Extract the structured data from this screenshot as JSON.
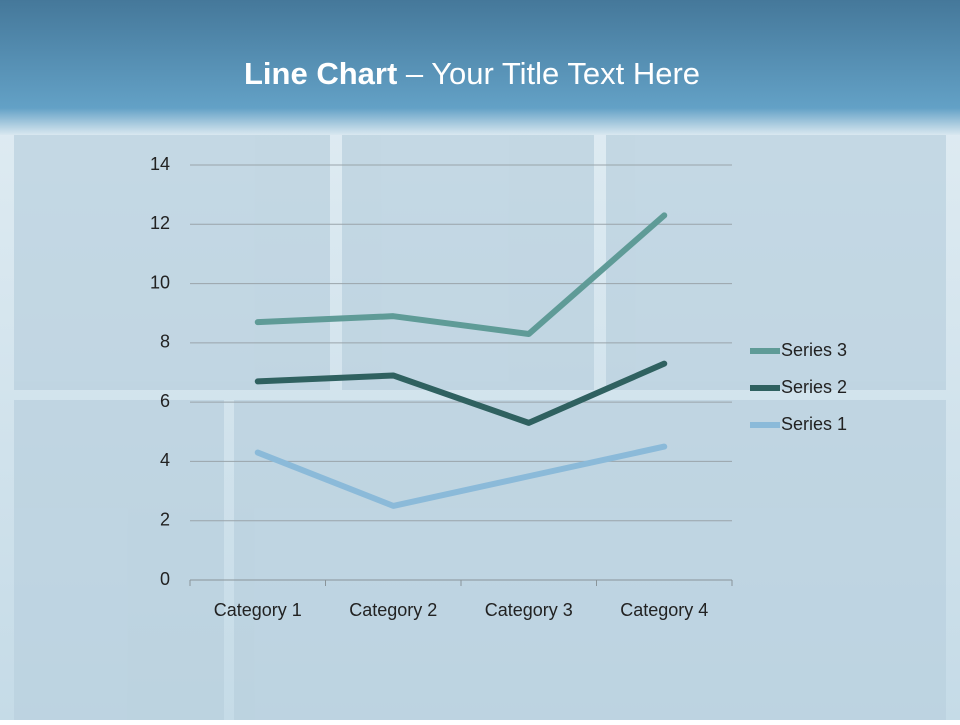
{
  "chart_data": {
    "type": "line",
    "stacked": true,
    "title": {
      "emphasis": "Line Chart",
      "text": "– Your Title Text Here"
    },
    "categories": [
      "Category 1",
      "Category 2",
      "Category 3",
      "Category 4"
    ],
    "series": [
      {
        "name": "Series 1",
        "color": "#8bbad9",
        "values": [
          4.3,
          2.5,
          3.5,
          4.5
        ]
      },
      {
        "name": "Series 2",
        "color": "#2f6160",
        "values": [
          2.4,
          4.4,
          1.8,
          2.8
        ]
      },
      {
        "name": "Series 3",
        "color": "#5f9b97",
        "values": [
          2,
          2,
          3,
          5
        ]
      }
    ],
    "ylim": [
      0,
      14
    ],
    "yticks": [
      0,
      2,
      4,
      6,
      8,
      10,
      12,
      14
    ],
    "grid": true,
    "legend": "right"
  }
}
